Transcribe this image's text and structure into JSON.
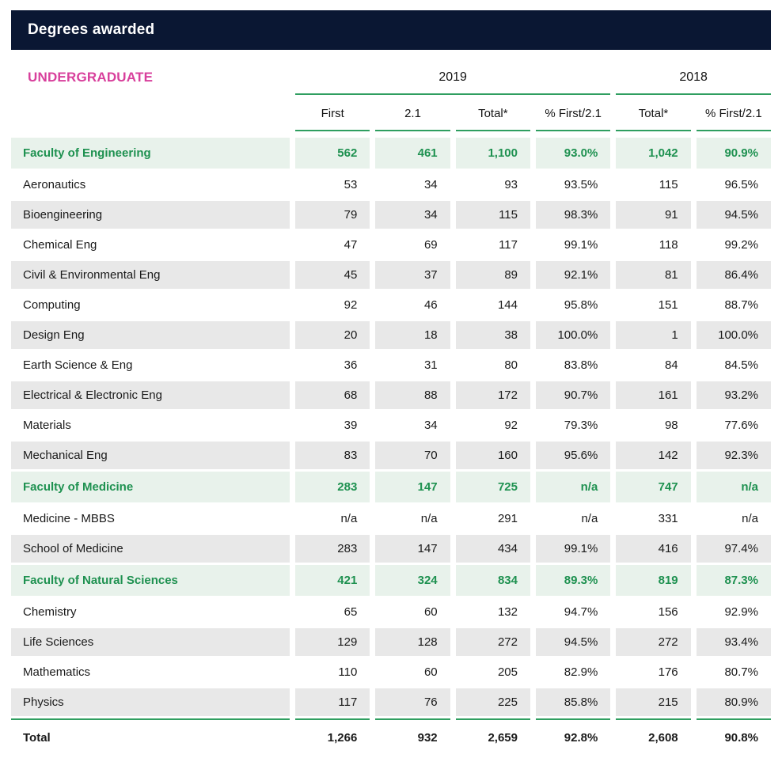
{
  "header": {
    "title": "Degrees awarded"
  },
  "section_label": "UNDERGRADUATE",
  "colors": {
    "navy": "#0a1733",
    "pink": "#d8409c",
    "green-text": "#1e9150",
    "green-line": "#2f9e60",
    "green-bg": "#e8f2eb",
    "gray-bg": "#e8e8e8",
    "text": "#1a1a1a"
  },
  "chart_data": {
    "type": "table",
    "title": "Degrees awarded",
    "section": "UNDERGRADUATE",
    "year_groups": [
      {
        "label": "2019",
        "columns": [
          "First",
          "2.1",
          "Total*",
          "% First/2.1"
        ]
      },
      {
        "label": "2018",
        "columns": [
          "Total*",
          "% First/2.1"
        ]
      }
    ],
    "columns": [
      "First",
      "2.1",
      "Total*",
      "% First/2.1",
      "Total*",
      "% First/2.1"
    ],
    "rows": [
      {
        "label": "Faculty of Engineering",
        "style": "faculty",
        "values": [
          "562",
          "461",
          "1,100",
          "93.0%",
          "1,042",
          "90.9%"
        ]
      },
      {
        "label": "Aeronautics",
        "style": "white",
        "values": [
          "53",
          "34",
          "93",
          "93.5%",
          "115",
          "96.5%"
        ]
      },
      {
        "label": "Bioengineering",
        "style": "gray",
        "values": [
          "79",
          "34",
          "115",
          "98.3%",
          "91",
          "94.5%"
        ]
      },
      {
        "label": "Chemical Eng",
        "style": "white",
        "values": [
          "47",
          "69",
          "117",
          "99.1%",
          "118",
          "99.2%"
        ]
      },
      {
        "label": "Civil & Environmental Eng",
        "style": "gray",
        "values": [
          "45",
          "37",
          "89",
          "92.1%",
          "81",
          "86.4%"
        ]
      },
      {
        "label": "Computing",
        "style": "white",
        "values": [
          "92",
          "46",
          "144",
          "95.8%",
          "151",
          "88.7%"
        ]
      },
      {
        "label": "Design Eng",
        "style": "gray",
        "values": [
          "20",
          "18",
          "38",
          "100.0%",
          "1",
          "100.0%"
        ]
      },
      {
        "label": "Earth Science & Eng",
        "style": "white",
        "values": [
          "36",
          "31",
          "80",
          "83.8%",
          "84",
          "84.5%"
        ]
      },
      {
        "label": "Electrical & Electronic Eng",
        "style": "gray",
        "values": [
          "68",
          "88",
          "172",
          "90.7%",
          "161",
          "93.2%"
        ]
      },
      {
        "label": "Materials",
        "style": "white",
        "values": [
          "39",
          "34",
          "92",
          "79.3%",
          "98",
          "77.6%"
        ]
      },
      {
        "label": "Mechanical Eng",
        "style": "gray",
        "values": [
          "83",
          "70",
          "160",
          "95.6%",
          "142",
          "92.3%"
        ]
      },
      {
        "label": "Faculty of Medicine",
        "style": "faculty",
        "values": [
          "283",
          "147",
          "725",
          "n/a",
          "747",
          "n/a"
        ]
      },
      {
        "label": "Medicine - MBBS",
        "style": "white",
        "values": [
          "n/a",
          "n/a",
          "291",
          "n/a",
          "331",
          "n/a"
        ]
      },
      {
        "label": "School of Medicine",
        "style": "gray",
        "values": [
          "283",
          "147",
          "434",
          "99.1%",
          "416",
          "97.4%"
        ]
      },
      {
        "label": "Faculty of Natural Sciences",
        "style": "faculty",
        "values": [
          "421",
          "324",
          "834",
          "89.3%",
          "819",
          "87.3%"
        ]
      },
      {
        "label": "Chemistry",
        "style": "white",
        "values": [
          "65",
          "60",
          "132",
          "94.7%",
          "156",
          "92.9%"
        ]
      },
      {
        "label": "Life Sciences",
        "style": "gray",
        "values": [
          "129",
          "128",
          "272",
          "94.5%",
          "272",
          "93.4%"
        ]
      },
      {
        "label": "Mathematics",
        "style": "white",
        "values": [
          "110",
          "60",
          "205",
          "82.9%",
          "176",
          "80.7%"
        ]
      },
      {
        "label": "Physics",
        "style": "gray",
        "values": [
          "117",
          "76",
          "225",
          "85.8%",
          "215",
          "80.9%"
        ]
      }
    ],
    "total_row": {
      "label": "Total",
      "values": [
        "1,266",
        "932",
        "2,659",
        "92.8%",
        "2,608",
        "90.8%"
      ]
    }
  }
}
